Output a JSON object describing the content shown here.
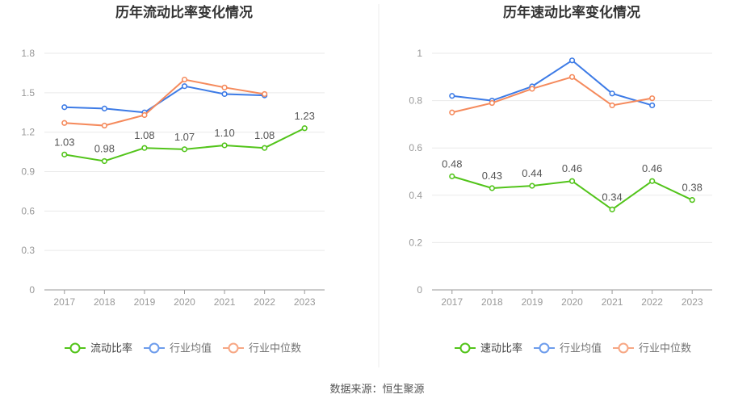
{
  "source": "数据来源：恒生聚源",
  "chart_data": [
    {
      "type": "line",
      "title": "历年流动比率变化情况",
      "categories": [
        "2017",
        "2018",
        "2019",
        "2020",
        "2021",
        "2022",
        "2023"
      ],
      "ylim": [
        0,
        1.8
      ],
      "yticks": [
        "0",
        "0.3",
        "0.6",
        "0.9",
        "1.2",
        "1.5",
        "1.8"
      ],
      "legend_position": "bottom",
      "grid": true,
      "series": [
        {
          "name": "流动比率",
          "color": "#52c41a",
          "values": [
            1.03,
            0.98,
            1.08,
            1.07,
            1.1,
            1.08,
            1.23
          ],
          "labels": [
            "1.03",
            "0.98",
            "1.08",
            "1.07",
            "1.10",
            "1.08",
            "1.23"
          ]
        },
        {
          "name": "行业均值",
          "color": "#3d7be6",
          "values": [
            1.39,
            1.38,
            1.35,
            1.55,
            1.49,
            1.48,
            null
          ]
        },
        {
          "name": "行业中位数",
          "color": "#f58a5c",
          "values": [
            1.27,
            1.25,
            1.33,
            1.6,
            1.54,
            1.49,
            null
          ]
        }
      ]
    },
    {
      "type": "line",
      "title": "历年速动比率变化情况",
      "categories": [
        "2017",
        "2018",
        "2019",
        "2020",
        "2021",
        "2022",
        "2023"
      ],
      "ylim": [
        0,
        1
      ],
      "yticks": [
        "0",
        "0.2",
        "0.4",
        "0.6",
        "0.8",
        "1"
      ],
      "legend_position": "bottom",
      "grid": true,
      "series": [
        {
          "name": "速动比率",
          "color": "#52c41a",
          "values": [
            0.48,
            0.43,
            0.44,
            0.46,
            0.34,
            0.46,
            0.38
          ],
          "labels": [
            "0.48",
            "0.43",
            "0.44",
            "0.46",
            "0.34",
            "0.46",
            "0.38"
          ]
        },
        {
          "name": "行业均值",
          "color": "#3d7be6",
          "values": [
            0.82,
            0.8,
            0.86,
            0.97,
            0.83,
            0.78,
            null
          ]
        },
        {
          "name": "行业中位数",
          "color": "#f58a5c",
          "values": [
            0.75,
            0.79,
            0.85,
            0.9,
            0.78,
            0.81,
            null
          ]
        }
      ]
    }
  ]
}
